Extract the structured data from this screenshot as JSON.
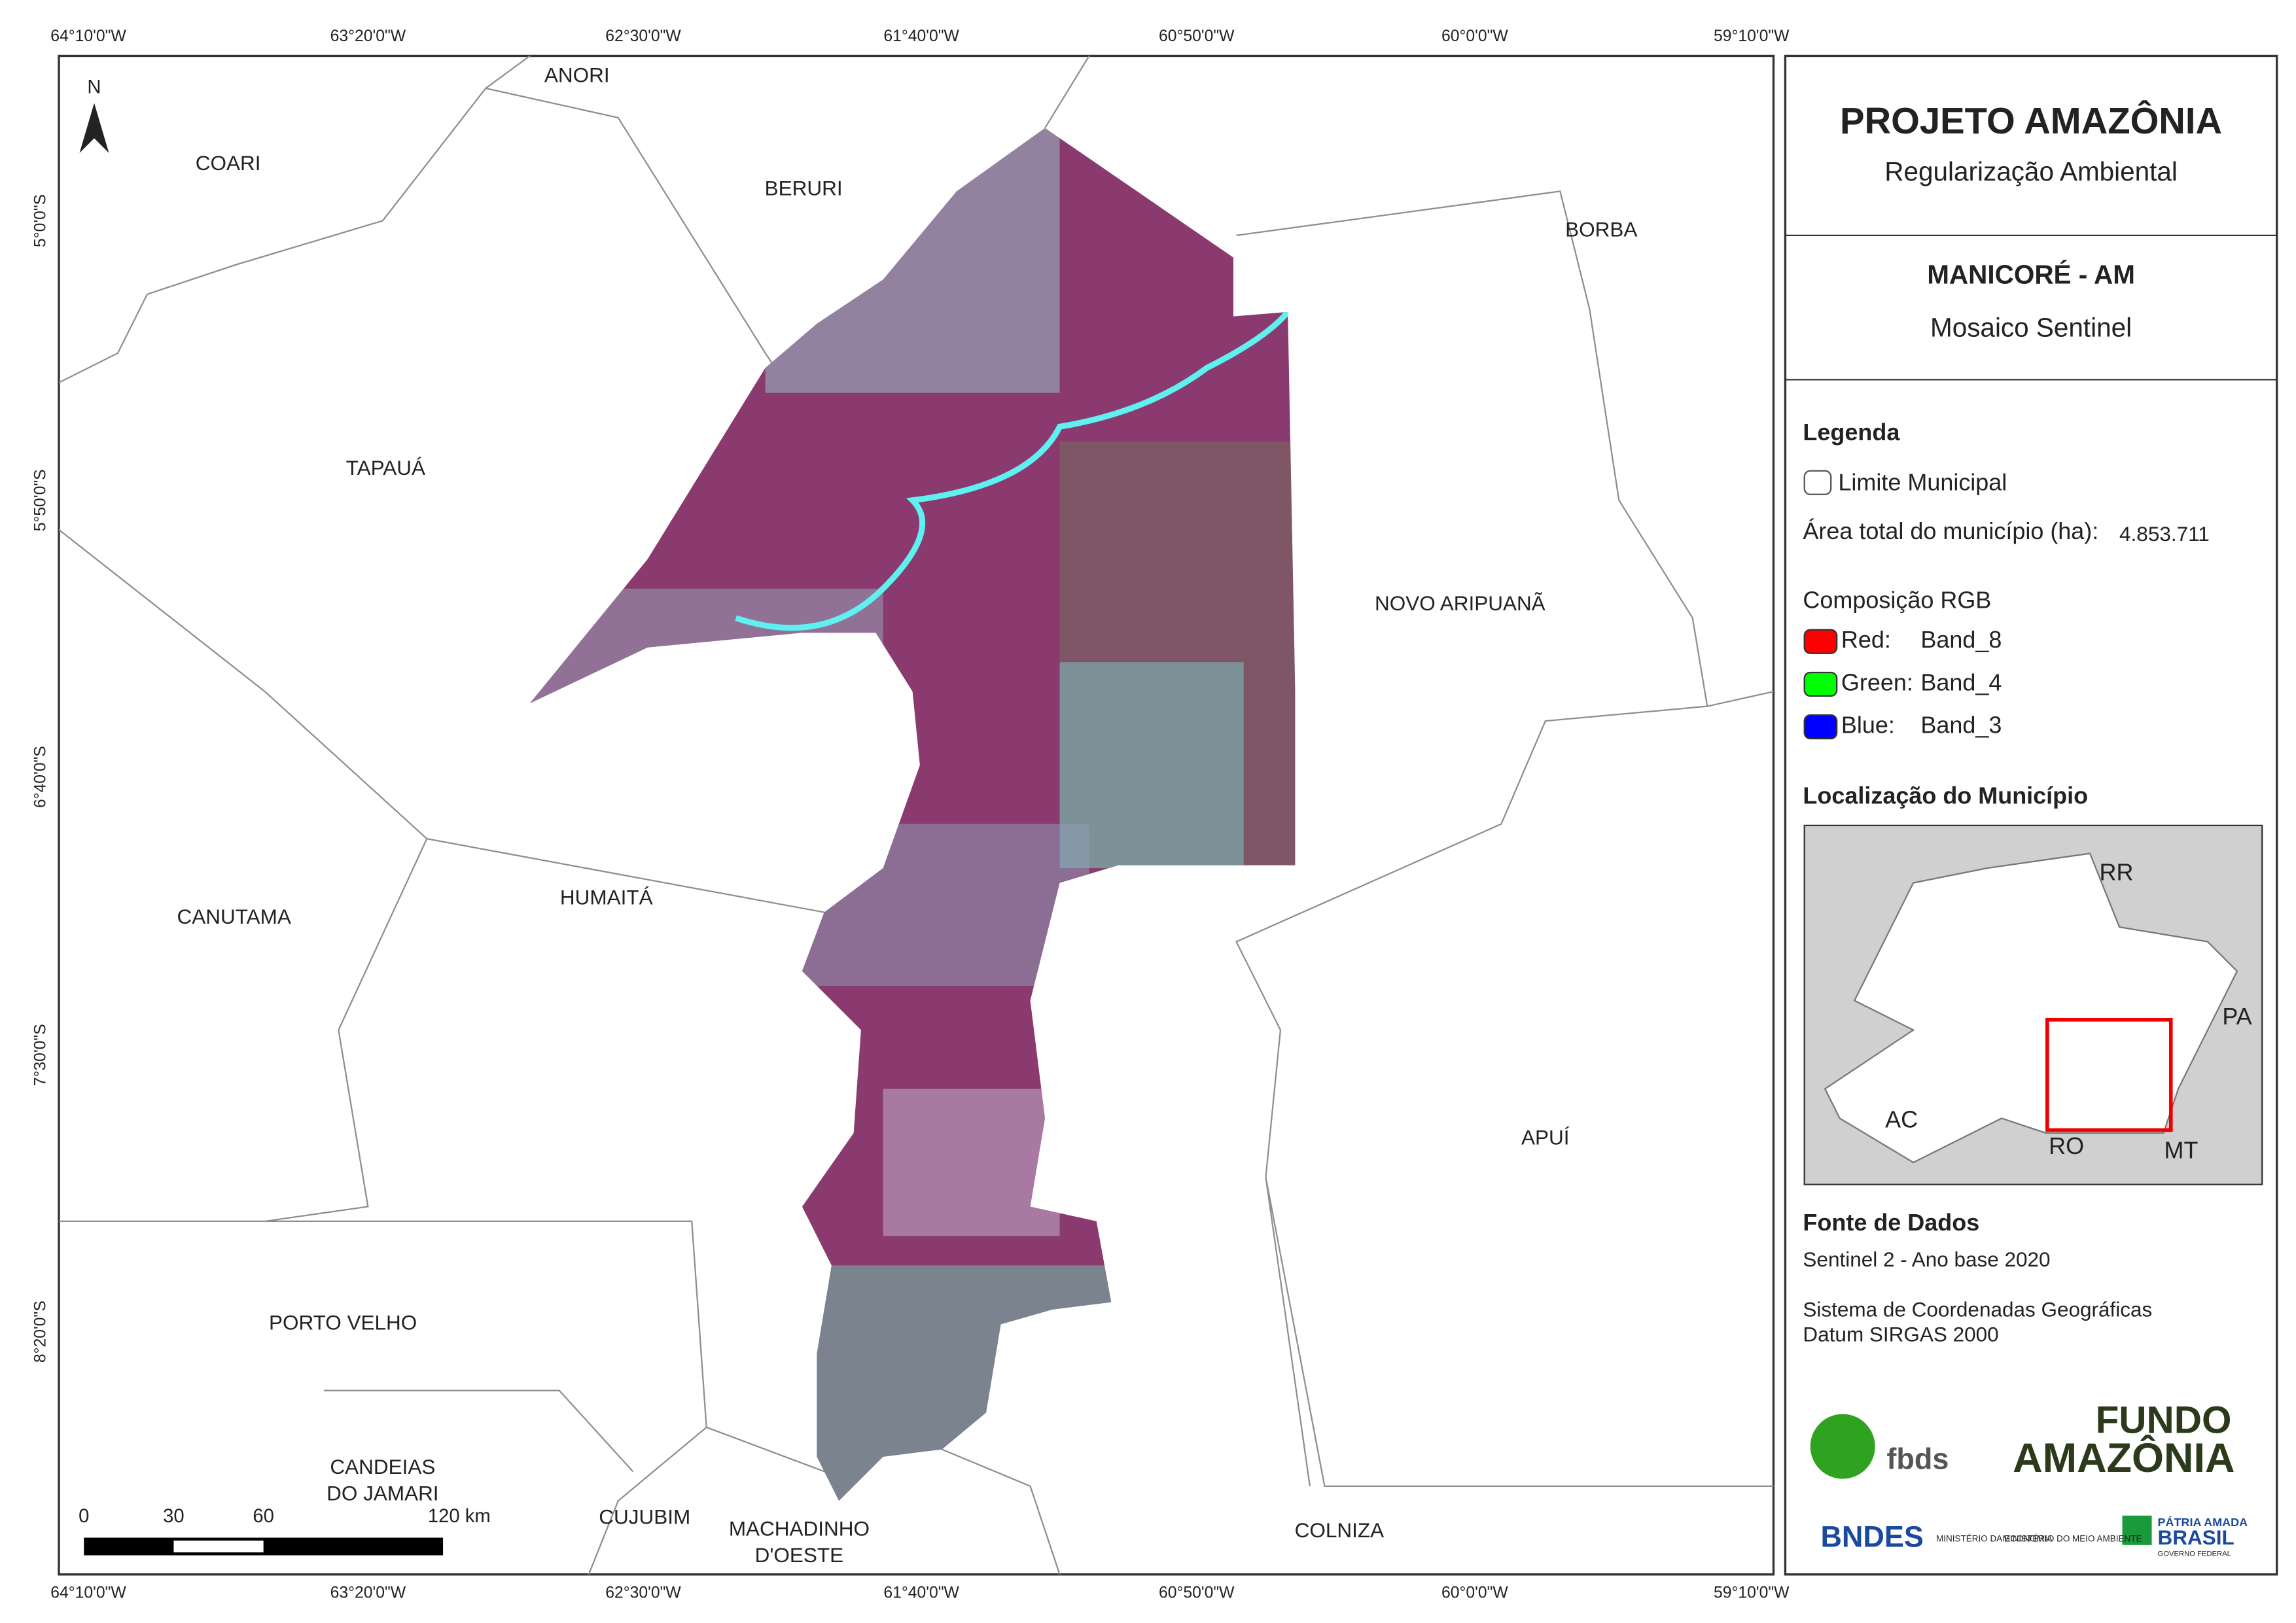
{
  "map": {
    "lon_labels": [
      "64°10'0\"W",
      "63°20'0\"W",
      "62°30'0\"W",
      "61°40'0\"W",
      "60°50'0\"W",
      "60°0'0\"W",
      "59°10'0\"W"
    ],
    "lat_labels": [
      "5°0'0\"S",
      "5°50'0\"S",
      "6°40'0\"S",
      "7°30'0\"S",
      "8°20'0\"S"
    ],
    "north": "N",
    "places": [
      "ANORI",
      "COARI",
      "BERURI",
      "BORBA",
      "TAPAUÁ",
      "NOVO ARIPUANÃ",
      "CANUTAMA",
      "HUMAITÁ",
      "APUÍ",
      "PORTO VELHO",
      [
        "CANDEIAS",
        "DO JAMARI"
      ],
      "CUJUBIM",
      [
        "MACHADINHO",
        "D'OESTE"
      ],
      "COLNIZA"
    ],
    "scale": [
      "0",
      "30",
      "60",
      "120 km"
    ]
  },
  "panel": {
    "title": "PROJETO AMAZÔNIA",
    "subtitle": "Regularização Ambiental",
    "municipality": "MANICORÉ - AM",
    "product": "Mosaico Sentinel",
    "legend_title": "Legenda",
    "legend_boundary": "Limite Municipal",
    "area_label": "Área total do município (ha):",
    "area_value": "4.853.711",
    "rgb_title": "Composição RGB",
    "bands": [
      {
        "channel": "Red:",
        "band": "Band_8",
        "color": "#ff0000"
      },
      {
        "channel": "Green:",
        "band": "Band_4",
        "color": "#00ff00"
      },
      {
        "channel": "Blue:",
        "band": "Band_3",
        "color": "#0000ff"
      }
    ],
    "location_title": "Localização do Município",
    "inset_labels": [
      "RR",
      "PA",
      "AC",
      "RO",
      "MT"
    ],
    "sources_title": "Fonte de Dados",
    "sources": [
      "Sentinel 2 - Ano base 2020",
      "Sistema de Coordenadas Geográficas",
      "Datum SIRGAS 2000"
    ],
    "logos": [
      "fbds",
      "FUNDO",
      "AMAZÔNIA",
      "BNDES",
      "MINISTÉRIO DA ECONOMIA",
      "MINISTÉRIO DO MEIO AMBIENTE",
      "PÁTRIA AMADA",
      "BRASIL",
      "GOVERNO FEDERAL"
    ]
  }
}
